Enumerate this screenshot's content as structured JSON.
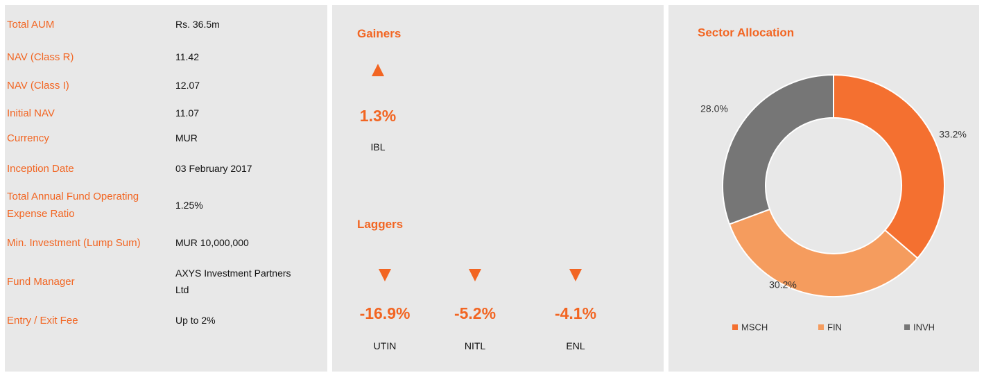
{
  "fund_details": [
    {
      "label": "Total AUM",
      "value": "Rs. 36.5m"
    },
    {
      "label": "NAV (Class R)",
      "value": "11.42"
    },
    {
      "label": "NAV (Class I)",
      "value": "12.07"
    },
    {
      "label": "Initial NAV",
      "value": "11.07"
    },
    {
      "label": "Currency",
      "value": "MUR"
    },
    {
      "label": "Inception Date",
      "value": "03 February 2017"
    },
    {
      "label": "Total Annual Fund Operating Expense Ratio",
      "value": "1.25%"
    },
    {
      "label": "Min. Investment (Lump Sum)",
      "value": "MUR 10,000,000"
    },
    {
      "label": "Fund Manager",
      "value": "AXYS Investment Partners Ltd"
    },
    {
      "label": "Entry / Exit Fee",
      "value": "Up to 2%"
    }
  ],
  "gainers": {
    "title": "Gainers",
    "items": [
      {
        "change": "1.3%",
        "name": "IBL"
      }
    ]
  },
  "laggers": {
    "title": "Laggers",
    "items": [
      {
        "change": "-16.9%",
        "name": "UTIN"
      },
      {
        "change": "-5.2%",
        "name": "NITL"
      },
      {
        "change": "-4.1%",
        "name": "ENL"
      }
    ]
  },
  "chart_data": {
    "type": "pie",
    "donut": true,
    "title": "Sector Allocation",
    "categories": [
      "MSCH",
      "FIN",
      "INVH"
    ],
    "values": [
      33.2,
      30.2,
      28.0
    ],
    "value_labels": [
      "33.2%",
      "30.2%",
      "28.0%"
    ],
    "colors": [
      "#f47030",
      "#f59c5e",
      "#767676"
    ],
    "legend": "bottom"
  }
}
